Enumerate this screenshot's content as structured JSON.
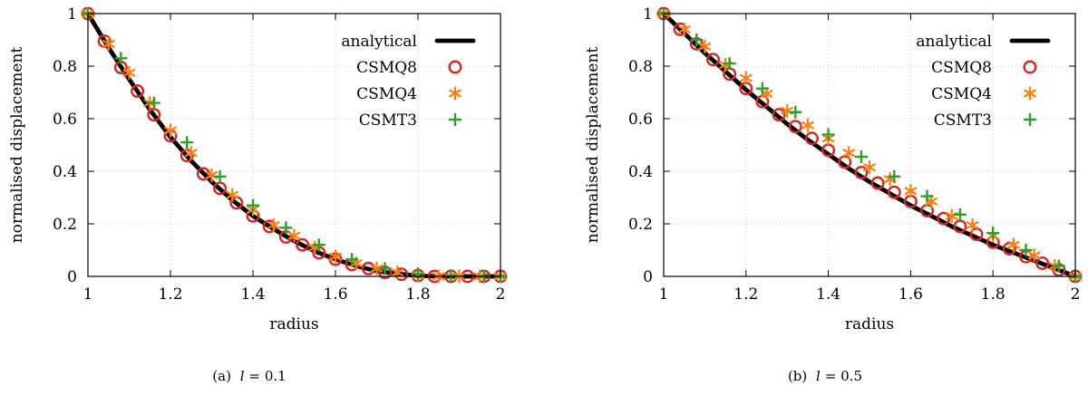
{
  "chart_data": [
    {
      "type": "line",
      "caption": "(a) l = 0.1",
      "caption_prefix": "(a)",
      "caption_var": "l",
      "caption_value": "= 0.1",
      "xlabel": "radius",
      "ylabel": "normalised displacement",
      "xlim": [
        1,
        2
      ],
      "ylim": [
        0,
        1
      ],
      "x_ticks": [
        "1",
        "1.2",
        "1.4",
        "1.6",
        "1.8",
        "2"
      ],
      "y_ticks": [
        "0",
        "0.2",
        "0.4",
        "0.6",
        "0.8",
        "1"
      ],
      "grid": true,
      "legend_position": "top-right",
      "series": [
        {
          "name": "analytical",
          "marker": "line",
          "color": "#000000",
          "x": [
            1.0,
            1.05,
            1.1,
            1.15,
            1.2,
            1.25,
            1.3,
            1.35,
            1.4,
            1.45,
            1.5,
            1.55,
            1.6,
            1.65,
            1.7,
            1.75,
            1.8,
            1.85,
            1.9,
            1.95,
            2.0
          ],
          "y": [
            1.0,
            0.87,
            0.75,
            0.635,
            0.53,
            0.44,
            0.36,
            0.29,
            0.23,
            0.18,
            0.135,
            0.095,
            0.065,
            0.04,
            0.02,
            0.01,
            0.002,
            0.0,
            0.0,
            0.0,
            0.0
          ]
        },
        {
          "name": "CSMQ8",
          "marker": "circle",
          "color": "#d62728",
          "x": [
            1.0,
            1.04,
            1.08,
            1.12,
            1.16,
            1.2,
            1.24,
            1.28,
            1.32,
            1.36,
            1.4,
            1.44,
            1.48,
            1.52,
            1.56,
            1.6,
            1.64,
            1.68,
            1.72,
            1.76,
            1.8,
            1.84,
            1.88,
            1.92,
            1.96,
            2.0
          ],
          "y": [
            1.0,
            0.895,
            0.795,
            0.705,
            0.615,
            0.535,
            0.46,
            0.39,
            0.335,
            0.28,
            0.23,
            0.19,
            0.15,
            0.12,
            0.09,
            0.065,
            0.045,
            0.03,
            0.015,
            0.008,
            0.003,
            0.0,
            0.0,
            0.0,
            0.0,
            0.0
          ]
        },
        {
          "name": "CSMQ4",
          "marker": "star",
          "color": "#ff7f0e",
          "x": [
            1.0,
            1.05,
            1.1,
            1.15,
            1.2,
            1.25,
            1.3,
            1.35,
            1.4,
            1.45,
            1.5,
            1.55,
            1.6,
            1.65,
            1.7,
            1.75,
            1.8,
            1.85,
            1.9,
            1.95,
            2.0
          ],
          "y": [
            1.0,
            0.885,
            0.775,
            0.66,
            0.555,
            0.47,
            0.385,
            0.31,
            0.255,
            0.195,
            0.155,
            0.11,
            0.075,
            0.05,
            0.03,
            0.015,
            0.005,
            0.0,
            0.0,
            0.0,
            0.0
          ]
        },
        {
          "name": "CSMT3",
          "marker": "plus",
          "color": "#2ca02c",
          "x": [
            1.0,
            1.08,
            1.16,
            1.24,
            1.32,
            1.4,
            1.48,
            1.56,
            1.64,
            1.72,
            1.8,
            1.88,
            1.96,
            2.0
          ],
          "y": [
            1.0,
            0.83,
            0.66,
            0.51,
            0.38,
            0.27,
            0.185,
            0.12,
            0.065,
            0.03,
            0.01,
            0.003,
            0.0,
            0.0
          ]
        }
      ]
    },
    {
      "type": "line",
      "caption": "(b) l = 0.5",
      "caption_prefix": "(b)",
      "caption_var": "l",
      "caption_value": "= 0.5",
      "xlabel": "radius",
      "ylabel": "normalised displacement",
      "xlim": [
        1,
        2
      ],
      "ylim": [
        0,
        1
      ],
      "x_ticks": [
        "1",
        "1.2",
        "1.4",
        "1.6",
        "1.8",
        "2"
      ],
      "y_ticks": [
        "0",
        "0.2",
        "0.4",
        "0.6",
        "0.8",
        "1"
      ],
      "grid": true,
      "legend_position": "top-right",
      "series": [
        {
          "name": "analytical",
          "marker": "line",
          "color": "#000000",
          "x": [
            1.0,
            1.05,
            1.1,
            1.15,
            1.2,
            1.25,
            1.3,
            1.35,
            1.4,
            1.45,
            1.5,
            1.55,
            1.6,
            1.65,
            1.7,
            1.75,
            1.8,
            1.85,
            1.9,
            1.95,
            2.0
          ],
          "y": [
            1.0,
            0.925,
            0.85,
            0.78,
            0.71,
            0.645,
            0.58,
            0.52,
            0.465,
            0.41,
            0.36,
            0.315,
            0.27,
            0.23,
            0.19,
            0.155,
            0.12,
            0.09,
            0.06,
            0.03,
            0.0
          ]
        },
        {
          "name": "CSMQ8",
          "marker": "circle",
          "color": "#d62728",
          "x": [
            1.0,
            1.04,
            1.08,
            1.12,
            1.16,
            1.2,
            1.24,
            1.28,
            1.32,
            1.36,
            1.4,
            1.44,
            1.48,
            1.52,
            1.56,
            1.6,
            1.64,
            1.68,
            1.72,
            1.76,
            1.8,
            1.84,
            1.88,
            1.92,
            1.96,
            2.0
          ],
          "y": [
            1.0,
            0.94,
            0.885,
            0.825,
            0.77,
            0.715,
            0.665,
            0.615,
            0.57,
            0.525,
            0.48,
            0.435,
            0.395,
            0.355,
            0.32,
            0.285,
            0.25,
            0.22,
            0.19,
            0.16,
            0.13,
            0.105,
            0.075,
            0.05,
            0.025,
            0.0
          ]
        },
        {
          "name": "CSMQ4",
          "marker": "star",
          "color": "#ff7f0e",
          "x": [
            1.0,
            1.05,
            1.1,
            1.15,
            1.2,
            1.25,
            1.3,
            1.35,
            1.4,
            1.45,
            1.5,
            1.55,
            1.6,
            1.65,
            1.7,
            1.75,
            1.8,
            1.85,
            1.9,
            1.95,
            2.0
          ],
          "y": [
            1.0,
            0.94,
            0.875,
            0.805,
            0.755,
            0.695,
            0.63,
            0.575,
            0.525,
            0.47,
            0.415,
            0.37,
            0.325,
            0.285,
            0.23,
            0.195,
            0.155,
            0.12,
            0.08,
            0.04,
            0.0
          ]
        },
        {
          "name": "CSMT3",
          "marker": "plus",
          "color": "#2ca02c",
          "x": [
            1.0,
            1.08,
            1.16,
            1.24,
            1.32,
            1.4,
            1.48,
            1.56,
            1.64,
            1.72,
            1.8,
            1.88,
            1.96,
            2.0
          ],
          "y": [
            1.0,
            0.9,
            0.81,
            0.715,
            0.625,
            0.54,
            0.455,
            0.38,
            0.305,
            0.235,
            0.165,
            0.1,
            0.04,
            0.0
          ]
        }
      ]
    }
  ]
}
